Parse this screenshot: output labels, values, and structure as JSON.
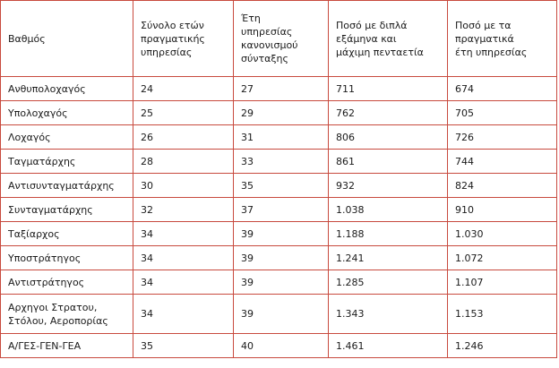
{
  "table": {
    "headers": [
      [
        "Βαθμός"
      ],
      [
        "Σύνολο ετών",
        "πραγματικής",
        "υπηρεσίας"
      ],
      [
        "Έτη",
        "υπηρεσίας",
        "κανονισμού",
        "σύνταξης"
      ],
      [
        "Ποσό με διπλά",
        "εξάμηνα και",
        "μάχιμη πενταετία"
      ],
      [
        "Ποσό με τα",
        "πραγματικά",
        "έτη υπηρεσίας"
      ]
    ],
    "rows": [
      {
        "rank": [
          "Ανθυπολοχαγός"
        ],
        "actual_years": "24",
        "regulation_years": "27",
        "amount_double": "711",
        "amount_actual": "674"
      },
      {
        "rank": [
          "Υπολοχαγός"
        ],
        "actual_years": "25",
        "regulation_years": "29",
        "amount_double": "762",
        "amount_actual": "705"
      },
      {
        "rank": [
          "Λοχαγός"
        ],
        "actual_years": "26",
        "regulation_years": "31",
        "amount_double": "806",
        "amount_actual": "726"
      },
      {
        "rank": [
          "Ταγματάρχης"
        ],
        "actual_years": "28",
        "regulation_years": "33",
        "amount_double": "861",
        "amount_actual": "744"
      },
      {
        "rank": [
          "Αντισυνταγματάρχης"
        ],
        "actual_years": "30",
        "regulation_years": "35",
        "amount_double": "932",
        "amount_actual": "824"
      },
      {
        "rank": [
          "Συνταγματάρχης"
        ],
        "actual_years": "32",
        "regulation_years": "37",
        "amount_double": "1.038",
        "amount_actual": "910"
      },
      {
        "rank": [
          "Ταξίαρχος"
        ],
        "actual_years": "34",
        "regulation_years": "39",
        "amount_double": "1.188",
        "amount_actual": "1.030"
      },
      {
        "rank": [
          "Υποστράτηγος"
        ],
        "actual_years": "34",
        "regulation_years": "39",
        "amount_double": "1.241",
        "amount_actual": "1.072"
      },
      {
        "rank": [
          "Αντιστράτηγος"
        ],
        "actual_years": "34",
        "regulation_years": "39",
        "amount_double": "1.285",
        "amount_actual": "1.107"
      },
      {
        "rank": [
          "Αρχηγοι Στρατου,",
          "Στόλου, Αεροπορίας"
        ],
        "actual_years": "34",
        "regulation_years": "39",
        "amount_double": "1.343",
        "amount_actual": "1.153"
      },
      {
        "rank": [
          "Α/ΓΕΣ-ΓΕΝ-ΓΕΑ"
        ],
        "actual_years": "35",
        "regulation_years": "40",
        "amount_double": "1.461",
        "amount_actual": "1.246"
      }
    ]
  },
  "colors": {
    "border": "#c84a3e",
    "text": "#1a1a1a",
    "background": "#ffffff"
  }
}
